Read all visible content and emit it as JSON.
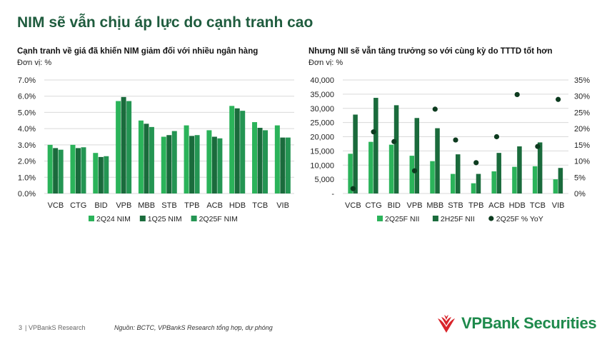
{
  "page": {
    "title": "NIM sẽ vẫn chịu áp lực do cạnh tranh cao",
    "page_number": "3",
    "brand_short": "VPBankS Research",
    "source": "Nguồn: BCTC, VPBankS Research tổng hợp, dự phóng",
    "logo_text": "VPBank Securities"
  },
  "colors": {
    "title": "#1f5c3e",
    "light_green": "#2bb35a",
    "dark_green": "#1a6b3c",
    "mid_green": "#249553",
    "logo_red": "#d9252b",
    "logo_green": "#1e8a4c"
  },
  "chart_data": [
    {
      "type": "bar",
      "title": "Cạnh tranh về giá đã khiến NIM giảm đối với nhiều ngân hàng",
      "unit_label": "Đơn vị: %",
      "categories": [
        "VCB",
        "CTG",
        "BID",
        "VPB",
        "MBB",
        "STB",
        "TPB",
        "ACB",
        "HDB",
        "TCB",
        "VIB"
      ],
      "ylim": [
        0,
        7
      ],
      "yticks": [
        "0.0%",
        "1.0%",
        "2.0%",
        "3.0%",
        "4.0%",
        "5.0%",
        "6.0%",
        "7.0%"
      ],
      "grid": true,
      "legend": "bottom",
      "series": [
        {
          "name": "2Q24 NIM",
          "color": "#2bb35a",
          "values": [
            3.0,
            3.0,
            2.5,
            5.7,
            4.5,
            3.5,
            4.2,
            3.9,
            5.4,
            4.4,
            4.2
          ]
        },
        {
          "name": "1Q25 NIM",
          "color": "#1a6b3c",
          "values": [
            2.8,
            2.8,
            2.25,
            5.95,
            4.3,
            3.6,
            3.55,
            3.5,
            5.25,
            4.05,
            3.45
          ]
        },
        {
          "name": "2Q25F NIM",
          "color": "#249553",
          "values": [
            2.7,
            2.85,
            2.3,
            5.7,
            4.1,
            3.85,
            3.6,
            3.4,
            5.1,
            3.9,
            3.45
          ]
        }
      ]
    },
    {
      "type": "bar",
      "title": "Nhưng NII sẽ vẫn tăng trưởng so với cùng kỳ do TTTD tốt hơn",
      "unit_label": "Đơn vị: %",
      "categories": [
        "VCB",
        "CTG",
        "BID",
        "VPB",
        "MBB",
        "STB",
        "TPB",
        "ACB",
        "HDB",
        "TCB",
        "VIB"
      ],
      "ylim": [
        0,
        40000
      ],
      "yticks": [
        "-",
        "5,000",
        "10,000",
        "15,000",
        "20,000",
        "25,000",
        "30,000",
        "35,000",
        "40,000"
      ],
      "y2lim": [
        0,
        35
      ],
      "y2ticks": [
        "0%",
        "5%",
        "10%",
        "15%",
        "20%",
        "25%",
        "30%",
        "35%"
      ],
      "grid": true,
      "legend": "bottom",
      "series": [
        {
          "name": "2Q25F NII",
          "color": "#2bb35a",
          "axis": "left",
          "values": [
            14000,
            18200,
            17200,
            13300,
            11400,
            6900,
            3600,
            7800,
            9400,
            9600,
            5000
          ]
        },
        {
          "name": "2H25F NII",
          "color": "#1a6b3c",
          "axis": "left",
          "values": [
            27800,
            33700,
            31100,
            26600,
            23000,
            13800,
            6900,
            14300,
            16600,
            18000,
            9000
          ]
        },
        {
          "name": "2Q25F % YoY",
          "color": "#0d3b1f",
          "axis": "right",
          "type": "scatter",
          "values": [
            1.5,
            19,
            16,
            7,
            26,
            16.5,
            9.5,
            17.5,
            30.5,
            14.5,
            29
          ]
        }
      ]
    }
  ]
}
